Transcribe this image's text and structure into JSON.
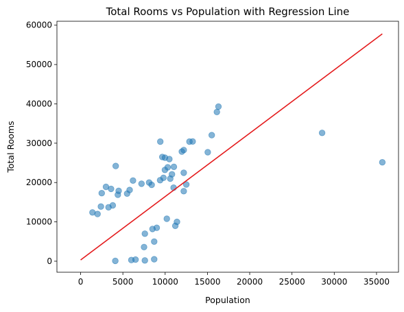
{
  "chart_data": {
    "type": "scatter",
    "title": "Total Rooms vs Population with Regression Line",
    "xlabel": "Population",
    "ylabel": "Total Rooms",
    "xlim": [
      -2800,
      37600
    ],
    "ylim": [
      -2800,
      61000
    ],
    "xticks": [
      0,
      5000,
      10000,
      15000,
      20000,
      25000,
      30000,
      35000
    ],
    "yticks": [
      0,
      10000,
      20000,
      30000,
      40000,
      50000,
      60000
    ],
    "grid": false,
    "legend": "none",
    "colors": {
      "points": "#1f77b4",
      "regression": "#e41a1c"
    },
    "point_alpha": 0.55,
    "series": [
      {
        "type": "scatter",
        "points": [
          [
            28566,
            32627
          ],
          [
            35682,
            25135
          ],
          [
            16305,
            39320
          ],
          [
            16122,
            37937
          ],
          [
            15507,
            32054
          ],
          [
            12873,
            30405
          ],
          [
            13251,
            30450
          ],
          [
            9427,
            30401
          ],
          [
            15037,
            27700
          ],
          [
            12203,
            28258
          ],
          [
            11973,
            27870
          ],
          [
            9976,
            26322
          ],
          [
            10497,
            25957
          ],
          [
            9662,
            26500
          ],
          [
            11035,
            24000
          ],
          [
            10300,
            23866
          ],
          [
            9972,
            23200
          ],
          [
            10801,
            22100
          ],
          [
            12203,
            22500
          ],
          [
            10600,
            21000
          ],
          [
            12500,
            19500
          ],
          [
            12200,
            17800
          ],
          [
            9800,
            21200
          ],
          [
            9400,
            20600
          ],
          [
            11000,
            18700
          ],
          [
            8400,
            19400
          ],
          [
            8100,
            20000
          ],
          [
            7200,
            19700
          ],
          [
            6200,
            20500
          ],
          [
            5500,
            17200
          ],
          [
            5800,
            18100
          ],
          [
            4150,
            24200
          ],
          [
            3000,
            18900
          ],
          [
            2500,
            17300
          ],
          [
            3600,
            18400
          ],
          [
            4500,
            17900
          ],
          [
            4400,
            16900
          ],
          [
            11400,
            10000
          ],
          [
            10200,
            10800
          ],
          [
            11200,
            9000
          ],
          [
            9000,
            8500
          ],
          [
            8500,
            8200
          ],
          [
            7600,
            7000
          ],
          [
            8700,
            5000
          ],
          [
            7500,
            3600
          ],
          [
            6500,
            400
          ],
          [
            6000,
            300
          ],
          [
            7600,
            200
          ],
          [
            8700,
            500
          ],
          [
            4100,
            100
          ],
          [
            1400,
            12400
          ],
          [
            2000,
            12000
          ],
          [
            2400,
            13900
          ],
          [
            3300,
            13700
          ],
          [
            3800,
            14200
          ]
        ]
      },
      {
        "type": "line",
        "name": "",
        "points": [
          [
            3,
            320
          ],
          [
            35682,
            57800
          ]
        ]
      }
    ]
  }
}
